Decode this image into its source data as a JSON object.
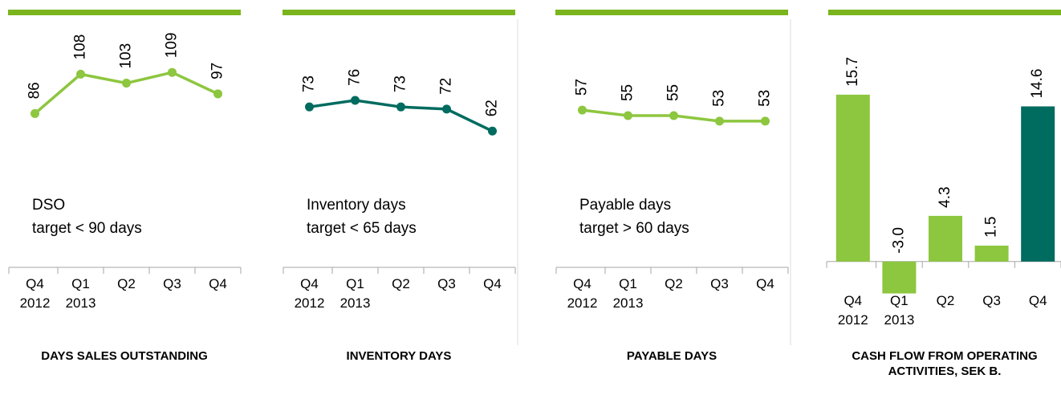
{
  "chart_data": [
    {
      "type": "line",
      "title": "DAYS SALES OUTSTANDING",
      "categories": [
        "Q4 2012",
        "Q1 2013",
        "Q2",
        "Q3",
        "Q4"
      ],
      "values": [
        86,
        108,
        103,
        109,
        97
      ],
      "color": "#8dc63f",
      "ylim": [
        0,
        145
      ],
      "annotation": [
        "DSO",
        "target  < 90 days"
      ]
    },
    {
      "type": "line",
      "title": "INVENTORY DAYS",
      "categories": [
        "Q4 2012",
        "Q1 2013",
        "Q2",
        "Q3",
        "Q4"
      ],
      "values": [
        73,
        76,
        73,
        72,
        62
      ],
      "color": "#006b5f",
      "ylim": [
        0,
        118
      ],
      "annotation": [
        "Inventory days",
        "target  < 65 days"
      ]
    },
    {
      "type": "line",
      "title": "PAYABLE DAYS",
      "categories": [
        "Q4 2012",
        "Q1 2013",
        "Q2",
        "Q3",
        "Q4"
      ],
      "values": [
        57,
        55,
        55,
        53,
        53
      ],
      "color": "#8dc63f",
      "ylim": [
        0,
        94
      ],
      "annotation": [
        "Payable days",
        "target  > 60 days"
      ]
    },
    {
      "type": "bar",
      "title": "CASH FLOW FROM OPERATING ACTIVITIES, SEK B.",
      "categories": [
        "Q4 2012",
        "Q1 2013",
        "Q2",
        "Q3",
        "Q4"
      ],
      "values": [
        15.7,
        -3.0,
        4.3,
        1.5,
        14.6
      ],
      "value_labels": [
        "15.7",
        "-3.0",
        "4.3",
        "1.5",
        "14.6"
      ],
      "colors": [
        "#8dc63f",
        "#8dc63f",
        "#8dc63f",
        "#8dc63f",
        "#006b5f"
      ],
      "ylim": [
        -5,
        20
      ]
    }
  ]
}
